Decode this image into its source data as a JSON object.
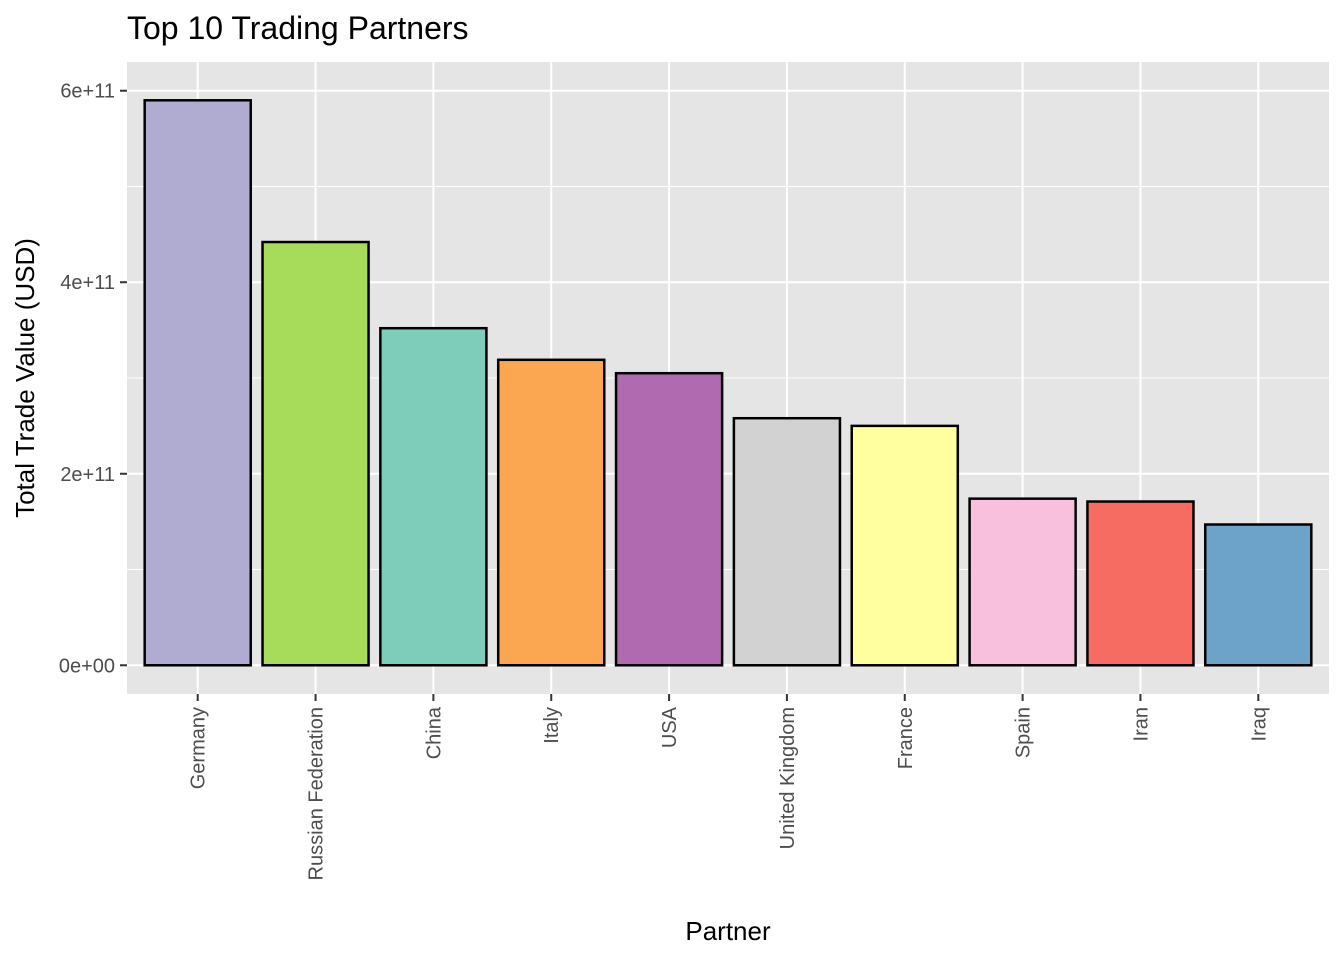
{
  "chart_data": {
    "type": "bar",
    "title": "Top 10 Trading Partners",
    "xlabel": "Partner",
    "ylabel": "Total Trade Value (USD)",
    "categories": [
      "Germany",
      "Russian Federation",
      "China",
      "Italy",
      "USA",
      "United Kingdom",
      "France",
      "Spain",
      "Iran",
      "Iraq"
    ],
    "values": [
      590000000000,
      442000000000,
      352000000000,
      319000000000,
      305000000000,
      258000000000,
      250000000000,
      174000000000,
      171000000000,
      147000000000
    ],
    "colors": [
      "#b0abd0",
      "#a6dc5a",
      "#7ecdba",
      "#fba752",
      "#b06aaf",
      "#d2d2d2",
      "#ffff9f",
      "#f9c0de",
      "#f66c63",
      "#6da2c9"
    ],
    "ylim": [
      -30000000000,
      630000000000
    ],
    "yticks": [
      {
        "value": 0,
        "label": "0e+00"
      },
      {
        "value": 200000000000,
        "label": "2e+11"
      },
      {
        "value": 400000000000,
        "label": "4e+11"
      },
      {
        "value": 600000000000,
        "label": "6e+11"
      }
    ],
    "y_minor_ticks": [
      100000000000,
      300000000000,
      500000000000
    ],
    "grid": true,
    "legend": "none",
    "panel_background": "#e5e5e5",
    "grid_color": "#ffffff",
    "bar_outline": "#000000"
  }
}
